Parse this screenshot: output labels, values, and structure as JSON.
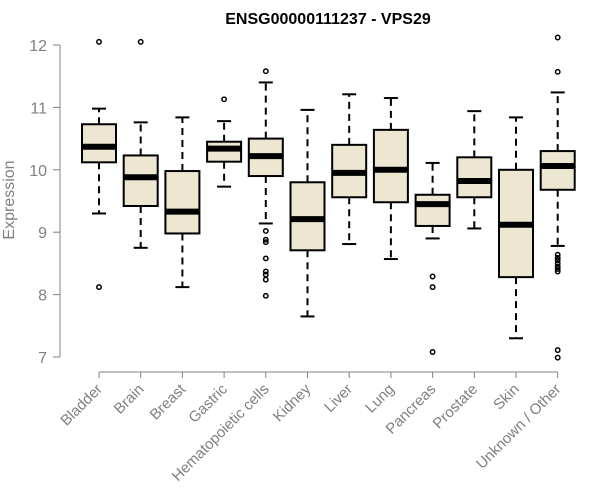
{
  "chart_data": {
    "type": "boxplot",
    "title": "ENSG00000111237 - VPS29",
    "xlabel": "",
    "ylabel": "Expression",
    "ylim": [
      7,
      12.15
    ],
    "yticks": [
      7,
      8,
      9,
      10,
      11,
      12
    ],
    "box_fill": "#ede7d1",
    "outline_color": "#000000",
    "axis_color": "#808080",
    "categories": [
      "Bladder",
      "Brain",
      "Breast",
      "Gastric",
      "Hematopoietic cells",
      "Kidney",
      "Liver",
      "Lung",
      "Pancreas",
      "Prostate",
      "Skin",
      "Unknown / Other"
    ],
    "boxes": [
      {
        "name": "Bladder",
        "whisker_low": 9.3,
        "q1": 10.12,
        "median": 10.37,
        "q3": 10.73,
        "whisker_high": 10.98,
        "outliers": [
          12.05,
          8.12
        ]
      },
      {
        "name": "Brain",
        "whisker_low": 8.75,
        "q1": 9.42,
        "median": 9.88,
        "q3": 10.23,
        "whisker_high": 10.76,
        "outliers": [
          12.05
        ]
      },
      {
        "name": "Breast",
        "whisker_low": 8.12,
        "q1": 8.98,
        "median": 9.33,
        "q3": 9.98,
        "whisker_high": 10.84,
        "outliers": []
      },
      {
        "name": "Gastric",
        "whisker_low": 9.73,
        "q1": 10.13,
        "median": 10.34,
        "q3": 10.45,
        "whisker_high": 10.78,
        "outliers": [
          11.13
        ]
      },
      {
        "name": "Hematopoietic cells",
        "whisker_low": 9.14,
        "q1": 9.9,
        "median": 10.22,
        "q3": 10.5,
        "whisker_high": 11.4,
        "outliers": [
          11.58,
          9.02,
          8.88,
          8.84,
          8.58,
          8.37,
          8.32,
          8.24,
          7.98
        ]
      },
      {
        "name": "Kidney",
        "whisker_low": 7.65,
        "q1": 8.71,
        "median": 9.21,
        "q3": 9.8,
        "whisker_high": 10.96,
        "outliers": []
      },
      {
        "name": "Liver",
        "whisker_low": 8.81,
        "q1": 9.56,
        "median": 9.95,
        "q3": 10.4,
        "whisker_high": 11.21,
        "outliers": []
      },
      {
        "name": "Lung",
        "whisker_low": 8.57,
        "q1": 9.48,
        "median": 10.0,
        "q3": 10.64,
        "whisker_high": 11.15,
        "outliers": []
      },
      {
        "name": "Pancreas",
        "whisker_low": 8.9,
        "q1": 9.1,
        "median": 9.45,
        "q3": 9.6,
        "whisker_high": 10.11,
        "outliers": [
          8.29,
          8.12,
          7.08
        ]
      },
      {
        "name": "Prostate",
        "whisker_low": 9.06,
        "q1": 9.56,
        "median": 9.82,
        "q3": 10.2,
        "whisker_high": 10.94,
        "outliers": []
      },
      {
        "name": "Skin",
        "whisker_low": 7.3,
        "q1": 8.28,
        "median": 9.12,
        "q3": 10.0,
        "whisker_high": 10.84,
        "outliers": []
      },
      {
        "name": "Unknown / Other",
        "whisker_low": 8.78,
        "q1": 9.68,
        "median": 10.06,
        "q3": 10.3,
        "whisker_high": 11.24,
        "outliers": [
          12.12,
          11.57,
          8.64,
          8.59,
          8.55,
          8.5,
          8.45,
          8.41,
          8.37,
          7.11,
          6.99
        ]
      }
    ]
  }
}
